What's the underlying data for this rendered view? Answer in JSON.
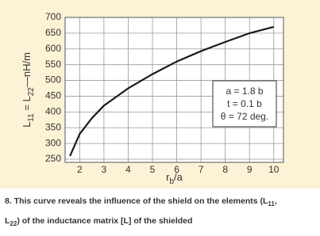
{
  "chart_data": {
    "type": "line",
    "ylabel": [
      "L",
      "11",
      " = L",
      "22",
      "—nH/m"
    ],
    "xlabel": [
      "r",
      "b",
      "/a"
    ],
    "x": [
      1.6,
      2,
      2.5,
      3,
      4,
      5,
      6,
      7,
      8,
      9,
      10
    ],
    "series": [
      {
        "color": "#1a1a1a",
        "values": [
          260,
          330,
          380,
          420,
          475,
          520,
          560,
          593,
          622,
          650,
          670
        ]
      }
    ],
    "xlim": [
      1.4,
      10.4
    ],
    "ylim": [
      240,
      700
    ],
    "xticks": [
      2,
      3,
      4,
      5,
      6,
      7,
      8,
      9,
      10
    ],
    "yticks": [
      250,
      300,
      350,
      400,
      450,
      500,
      550,
      600,
      650,
      700
    ],
    "grid": true,
    "annotations": [
      "a = 1.8 b",
      "t = 0.1 b",
      "θ = 72 deg."
    ]
  },
  "caption": {
    "line1": [
      "8. This curve reveals the influence of the shield on the elements (L",
      "11",
      ","
    ],
    "line2": [
      "L",
      "22",
      ") of the inductance matrix [L] of the shielded"
    ]
  }
}
